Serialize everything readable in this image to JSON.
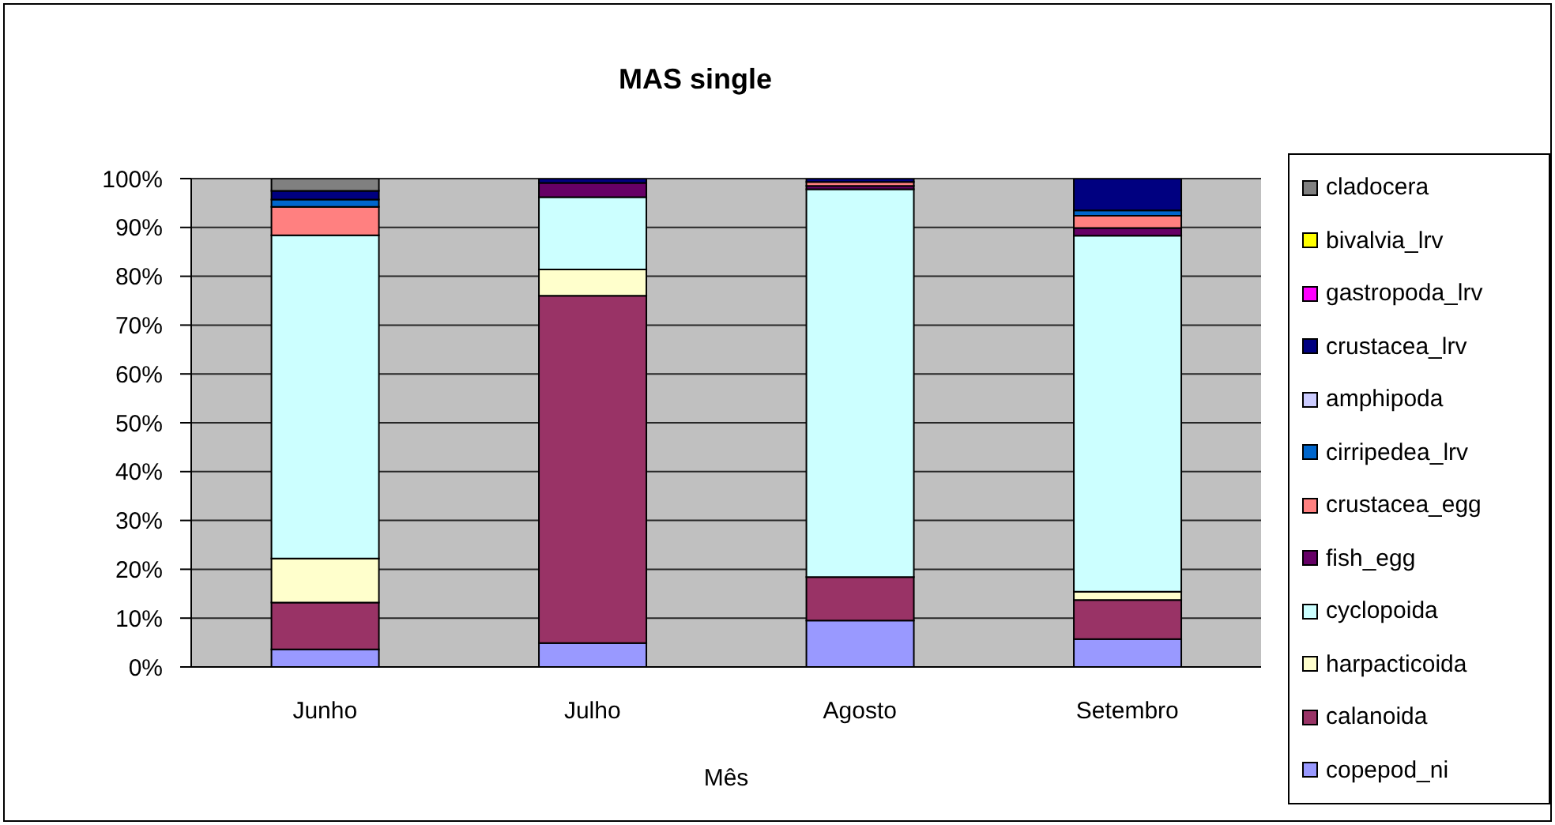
{
  "chart_data": {
    "type": "bar",
    "title": "MAS single",
    "xlabel": "Mês",
    "categories": [
      "Junho",
      "Julho",
      "Agosto",
      "Setembro"
    ],
    "stacked": true,
    "ylim": [
      0,
      100
    ],
    "yticks": [
      {
        "value": 0,
        "label": "0%"
      },
      {
        "value": 10,
        "label": "10%"
      },
      {
        "value": 20,
        "label": "20%"
      },
      {
        "value": 30,
        "label": "30%"
      },
      {
        "value": 40,
        "label": "40%"
      },
      {
        "value": 50,
        "label": "50%"
      },
      {
        "value": 60,
        "label": "60%"
      },
      {
        "value": 70,
        "label": "70%"
      },
      {
        "value": 80,
        "label": "80%"
      },
      {
        "value": 90,
        "label": "90%"
      },
      {
        "value": 100,
        "label": "100%"
      }
    ],
    "grid": "y",
    "legend": "right",
    "series": [
      {
        "name": "copepod_ni",
        "color": "#9999ff",
        "values": [
          3.6,
          4.9,
          9.5,
          5.7
        ]
      },
      {
        "name": "calanoida",
        "color": "#993366",
        "values": [
          9.6,
          71.1,
          8.9,
          8.0
        ]
      },
      {
        "name": "harpacticoida",
        "color": "#ffffcc",
        "values": [
          9.0,
          5.4,
          0,
          1.7
        ]
      },
      {
        "name": "cyclopoida",
        "color": "#ccffff",
        "values": [
          66.2,
          14.8,
          79.4,
          72.9
        ]
      },
      {
        "name": "fish_egg",
        "color": "#660066",
        "values": [
          0,
          2.9,
          0.7,
          1.6
        ]
      },
      {
        "name": "crustacea_egg",
        "color": "#ff8080",
        "values": [
          5.8,
          0,
          0.8,
          2.5
        ]
      },
      {
        "name": "cirripedea_lrv",
        "color": "#0066cc",
        "values": [
          1.5,
          0,
          0,
          1.1
        ]
      },
      {
        "name": "amphipoda",
        "color": "#ccccff",
        "values": [
          0,
          0,
          0,
          0
        ]
      },
      {
        "name": "crustacea_lrv",
        "color": "#000080",
        "values": [
          1.8,
          0.9,
          0.7,
          6.5
        ]
      },
      {
        "name": "gastropoda_lrv",
        "color": "#ff00ff",
        "values": [
          0,
          0,
          0,
          0
        ]
      },
      {
        "name": "bivalvia_lrv",
        "color": "#ffff00",
        "values": [
          0,
          0,
          0,
          0
        ]
      },
      {
        "name": "cladocera",
        "color": "#808080",
        "values": [
          2.5,
          0,
          0,
          0
        ]
      }
    ]
  }
}
